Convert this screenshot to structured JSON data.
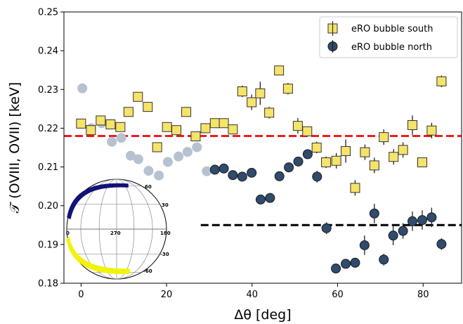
{
  "chart_data": {
    "type": "scatter",
    "xlabel": "Δθ [deg]",
    "ylabel": "𝒯 (OVIII, OVII) [keV]",
    "xlim": [
      -4,
      89
    ],
    "ylim": [
      0.18,
      0.25
    ],
    "xticks": [
      0,
      20,
      40,
      60,
      80
    ],
    "yticks": [
      0.18,
      0.19,
      0.2,
      0.21,
      0.22,
      0.23,
      0.24,
      0.25
    ],
    "ytick_labels": [
      "0.18",
      "0.19",
      "0.20",
      "0.21",
      "0.22",
      "0.23",
      "0.24",
      "0.25"
    ],
    "legend_position": "top-right",
    "series": [
      {
        "name": "eRO bubble south",
        "marker": "square",
        "color": "#f5e36a",
        "edge": "#333333",
        "x": [
          0,
          2.3,
          4.6,
          6.9,
          9.2,
          11.1,
          13.3,
          15.6,
          17.8,
          20.1,
          22.3,
          24.6,
          26.8,
          29.1,
          31.3,
          33.4,
          35.5,
          37.7,
          39.9,
          41.9,
          44.0,
          46.3,
          48.4,
          50.7,
          52.9,
          55.1,
          57.3,
          59.7,
          61.9,
          64.1,
          66.4,
          68.6,
          70.8,
          73.1,
          75.3,
          77.5,
          79.8,
          82.0,
          84.3
        ],
        "y": [
          0.2212,
          0.2195,
          0.222,
          0.221,
          0.2203,
          0.2242,
          0.2281,
          0.2255,
          0.2151,
          0.2203,
          0.2195,
          0.2242,
          0.2179,
          0.22,
          0.2213,
          0.2213,
          0.2197,
          0.2295,
          0.2267,
          0.229,
          0.224,
          0.2349,
          0.2302,
          0.2206,
          0.2192,
          0.215,
          0.2112,
          0.2116,
          0.2141,
          0.2046,
          0.2138,
          0.2104,
          0.2177,
          0.2126,
          0.2144,
          0.2208,
          0.2112,
          0.2194,
          0.2321
        ],
        "yerr": [
          0.001,
          0.001,
          0.001,
          0.001,
          0.001,
          0.001,
          0.001,
          0.001,
          0.001,
          0.001,
          0.001,
          0.001,
          0.001,
          0.001,
          0.001,
          0.001,
          0.001,
          0.0015,
          0.002,
          0.003,
          0.0015,
          0.001,
          0.0015,
          0.002,
          0.001,
          0.0015,
          0.0015,
          0.002,
          0.003,
          0.002,
          0.002,
          0.002,
          0.002,
          0.002,
          0.002,
          0.0025,
          0.001,
          0.002,
          0.0015
        ]
      },
      {
        "name": "eRO bubble north",
        "marker": "circle",
        "color": "#2f4b6e",
        "edge": "#1a1a1a",
        "x": [
          31.3,
          33.4,
          35.5,
          37.7,
          39.9,
          42.0,
          44.2,
          46.4,
          48.6,
          50.8,
          53.0,
          55.2,
          57.4,
          59.6,
          61.9,
          64.1,
          66.3,
          68.6,
          70.8,
          73.0,
          75.3,
          77.5,
          79.8,
          82.0,
          84.3
        ],
        "y": [
          0.2093,
          0.2096,
          0.2079,
          0.2075,
          0.2085,
          0.2016,
          0.202,
          0.2076,
          0.2099,
          0.2114,
          0.2133,
          0.2075,
          0.1942,
          0.1838,
          0.185,
          0.1853,
          0.1898,
          0.198,
          0.1861,
          0.1923,
          0.1935,
          0.196,
          0.1963,
          0.197,
          0.1901
        ],
        "yerr": [
          0.0008,
          0.0008,
          0.0008,
          0.0008,
          0.0008,
          0.0008,
          0.0008,
          0.0008,
          0.0008,
          0.0008,
          0.0008,
          0.0015,
          0.0015,
          0.001,
          0.001,
          0.001,
          0.0025,
          0.0025,
          0.0015,
          0.0025,
          0.002,
          0.0025,
          0.0025,
          0.0025,
          0.0015
        ]
      },
      {
        "marker": "circle",
        "color": "#b6c2cf",
        "edge": "#b6c2cf",
        "x": [
          0.3,
          2.4,
          4.8,
          7.2,
          9.4,
          11.6,
          13.4,
          15.8,
          18.2,
          20.3,
          22.8,
          24.9,
          27.1,
          29.4
        ],
        "y": [
          0.2303,
          0.22,
          0.2213,
          0.2165,
          0.2175,
          0.2129,
          0.212,
          0.209,
          0.2078,
          0.2113,
          0.2127,
          0.2139,
          0.2151,
          0.2089
        ]
      }
    ],
    "hlines": [
      {
        "y": 0.218,
        "color": "#ee1c1c",
        "style": "dashed",
        "xrange": [
          -4,
          89
        ]
      },
      {
        "y": 0.195,
        "color": "#000000",
        "style": "dashed",
        "xrange": [
          28,
          89
        ]
      }
    ],
    "inset_globe": {
      "labels": [
        "60",
        "30",
        "0",
        "270",
        "180",
        "-30",
        "-60"
      ],
      "north_color": "#12127a",
      "south_color": "#f2f20a"
    }
  }
}
